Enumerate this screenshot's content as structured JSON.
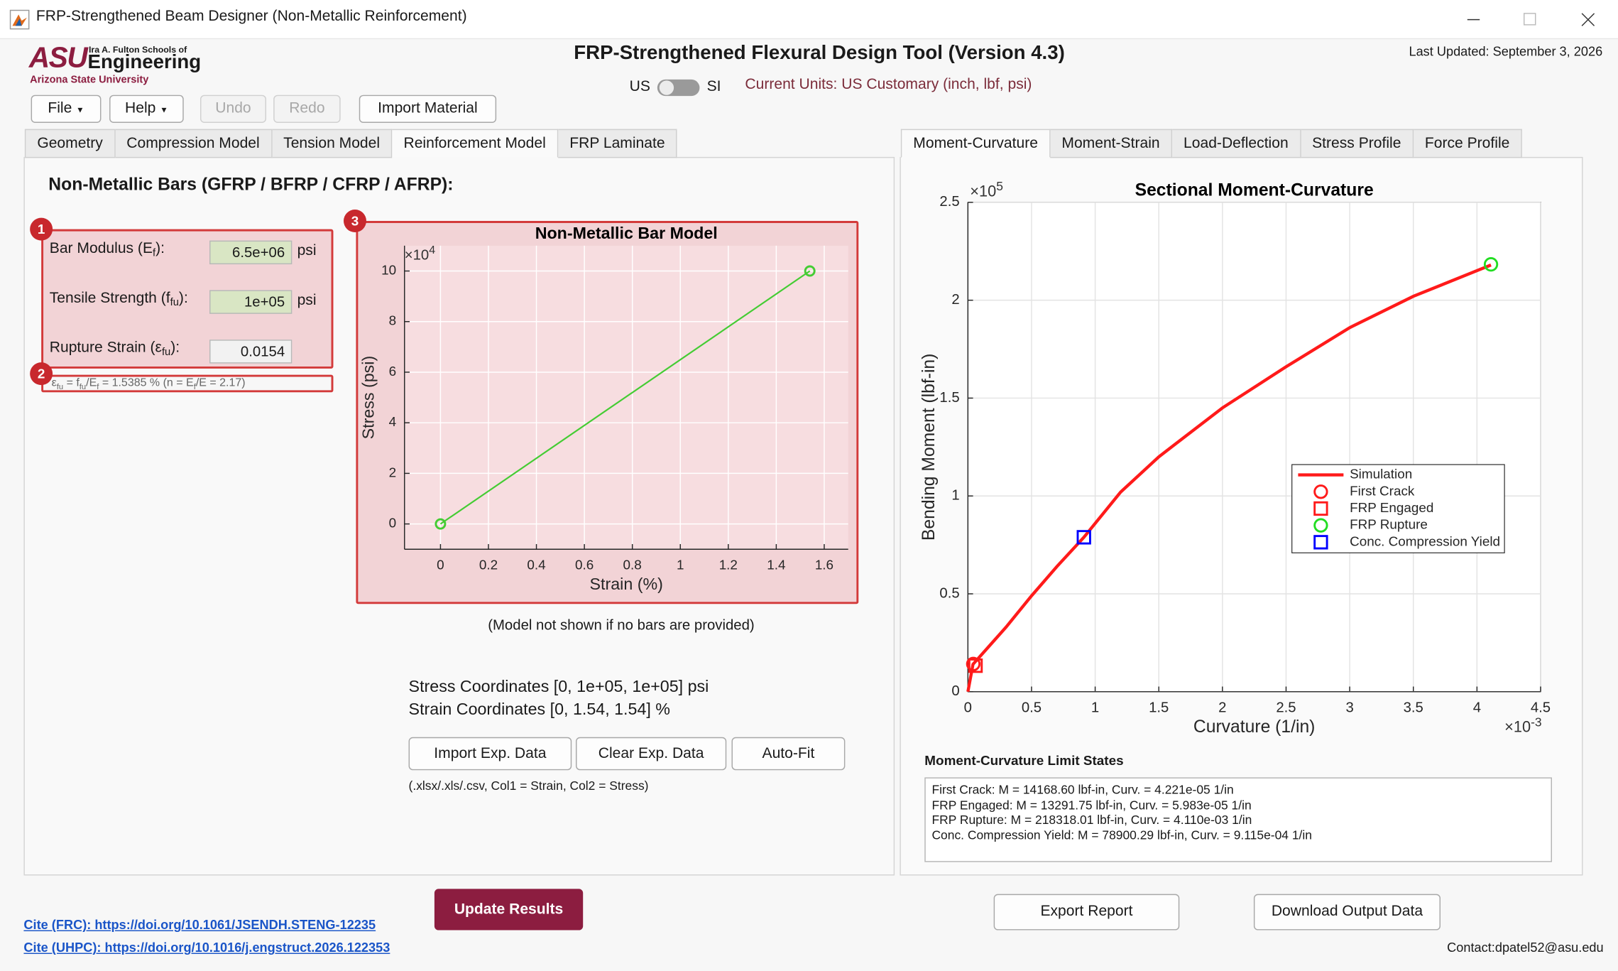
{
  "window": {
    "title": "FRP-Strengthened Beam Designer (Non-Metallic Reinforcement)"
  },
  "logo": {
    "mark": "ASU",
    "school": "Ira A. Fulton Schools of",
    "name": "Engineering",
    "university": "Arizona State University"
  },
  "header": {
    "title": "FRP-Strengthened Flexural Design Tool (Version 4.3)",
    "last_updated": "Last Updated: September 3, 2026",
    "unit_left": "US",
    "unit_right": "SI",
    "current_units": "Current Units: US Customary (inch, lbf, psi)"
  },
  "toolbar": [
    "File",
    "Help",
    "Undo",
    "Redo",
    "Import Material"
  ],
  "left_tabs": {
    "items": [
      "Geometry",
      "Compression Model",
      "Tension Model",
      "Reinforcement Model",
      "FRP Laminate"
    ],
    "selected": 3
  },
  "right_tabs": {
    "items": [
      "Moment-Curvature",
      "Moment-Strain",
      "Load-Deflection",
      "Stress Profile",
      "Force Profile"
    ],
    "selected": 0
  },
  "reinforcement": {
    "heading": "Non-Metallic Bars (GFRP / BFRP / CFRP / AFRP):",
    "badges": [
      1,
      2,
      3
    ],
    "fields": [
      {
        "label": [
          "Bar Modulus (E",
          "f",
          "):"
        ],
        "value": "6.5e+06",
        "unit": "psi"
      },
      {
        "label": [
          "Tensile Strength (f",
          "fu",
          "):"
        ],
        "value": "1e+05",
        "unit": "psi"
      },
      {
        "label": [
          "Rupture Strain (ε",
          "fu",
          "):"
        ],
        "value": "0.0154"
      }
    ],
    "derived": [
      "ε",
      "fu",
      " = f",
      "fu",
      "/E",
      "f",
      " = 1.5385 %   (n = E",
      "f",
      "/E = 2.17)"
    ],
    "caption": "(Model not shown if no bars are provided)",
    "stress_coordinates": "Stress Coordinates [0, 1e+05, 1e+05] psi",
    "strain_coordinates": "Strain Coordinates [0, 1.54, 1.54] %",
    "buttons": [
      "Import Exp. Data",
      "Clear Exp. Data",
      "Auto-Fit"
    ],
    "file_hint": "(.xlsx/.xls/.csv, Col1 = Strain, Col2 = Stress)"
  },
  "bar_model_chart": {
    "type": "line",
    "title": "Non-Metallic Bar Model",
    "x_label": "Strain (%)",
    "y_label": "Stress (psi)",
    "y_multiplier": {
      "base": "×10",
      "exponent": 4
    },
    "xlim": [
      -0.15,
      1.7
    ],
    "ylim": [
      -1,
      11
    ],
    "xticks": [
      0,
      0.2,
      0.4,
      0.6,
      0.8,
      1,
      1.2,
      1.4,
      1.6
    ],
    "yticks": [
      0,
      2,
      4,
      6,
      8,
      10
    ],
    "grid": true,
    "series": [
      {
        "color": "#44cc33",
        "marker": "circle",
        "line": true,
        "x": [
          0,
          1.54
        ],
        "values": [
          0,
          10
        ]
      }
    ]
  },
  "moment_curvature_chart": {
    "type": "line",
    "title": "Sectional Moment-Curvature",
    "x_label": "Curvature (1/in)",
    "y_label": "Bending Moment (lbf-in)",
    "y_multiplier": {
      "base": "×10",
      "exponent": 5
    },
    "x_multiplier": {
      "base": "×10",
      "exponent": -3
    },
    "xlim": [
      0,
      4.5
    ],
    "ylim": [
      0,
      2.5
    ],
    "xticks": [
      0,
      0.5,
      1,
      1.5,
      2,
      2.5,
      3,
      3.5,
      4,
      4.5
    ],
    "yticks": [
      0,
      0.5,
      1,
      1.5,
      2,
      2.5
    ],
    "grid": true,
    "legend": "east",
    "series": [
      {
        "name": "Simulation",
        "color": "#ff1a1a",
        "line": true,
        "x": [
          0,
          0.04,
          0.3,
          0.5,
          0.7,
          0.9115,
          1.2,
          1.5,
          2.0,
          2.5,
          3.0,
          3.5,
          4.11
        ],
        "values": [
          0,
          0.14,
          0.33,
          0.49,
          0.64,
          0.789,
          1.02,
          1.2,
          1.45,
          1.66,
          1.86,
          2.02,
          2.18
        ]
      },
      {
        "name": "First Crack",
        "color": "#ff1a1a",
        "marker": "circle",
        "x": [
          0.04221
        ],
        "values": [
          0.141686
        ]
      },
      {
        "name": "FRP Engaged",
        "color": "#ff1a1a",
        "marker": "square",
        "x": [
          0.05983
        ],
        "values": [
          0.132918
        ]
      },
      {
        "name": "FRP Rupture",
        "color": "#22dd22",
        "marker": "circle",
        "x": [
          4.11
        ],
        "values": [
          2.18318
        ]
      },
      {
        "name": "Conc. Compression Yield",
        "color": "#0000ff",
        "marker": "square",
        "x": [
          0.9115
        ],
        "values": [
          0.789003
        ]
      }
    ]
  },
  "limit_states": {
    "heading": "Moment-Curvature Limit States",
    "lines": [
      "First Crack: M = 14168.60 lbf-in, Curv. = 4.221e-05 1/in",
      "FRP Engaged: M = 13291.75 lbf-in, Curv. = 5.983e-05 1/in",
      "FRP Rupture: M = 218318.01 lbf-in, Curv. = 4.110e-03 1/in",
      "Conc. Compression Yield: M = 78900.29 lbf-in, Curv. = 9.115e-04 1/in"
    ]
  },
  "footer": {
    "update": "Update Results",
    "export": "Export Report",
    "download": "Download Output Data",
    "cite_frc": "Cite (FRC): https://doi.org/10.1061/JSENDH.STENG-12235",
    "cite_uhpc": "Cite (UHPC): https://doi.org/10.1016/j.engstruct.2026.122353",
    "contact": "Contact:dpatel52@asu.edu"
  }
}
